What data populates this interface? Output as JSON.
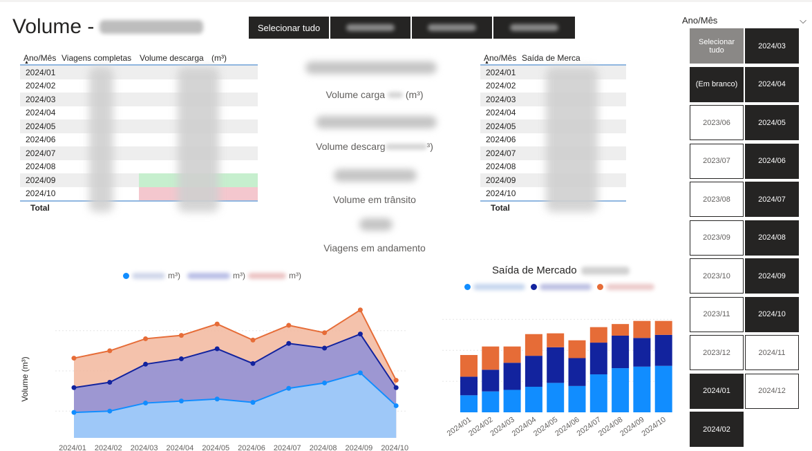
{
  "page": {
    "title": "Volume -"
  },
  "top_slicer": {
    "select_all_label": "Selecionar tudo"
  },
  "table_left": {
    "headers": [
      "Ano/Mês",
      "Viagens completas",
      "Volume descarga",
      "(m³)"
    ],
    "rows": [
      "2024/01",
      "2024/02",
      "2024/03",
      "2024/04",
      "2024/05",
      "2024/06",
      "2024/07",
      "2024/08",
      "2024/09",
      "2024/10"
    ],
    "total_label": "Total",
    "highlight_colors": {
      "green": "#c6efce",
      "red": "#f4c7ce"
    }
  },
  "center_kpis": {
    "volume_carga_label": "Volume carga",
    "volume_carga_unit": "(m³)",
    "volume_descarga_label": "Volume descarg",
    "volume_descarga_unit": "³)",
    "volume_transito_label": "Volume em trânsito",
    "viagens_andamento_label": "Viagens em andamento"
  },
  "table_right": {
    "headers": [
      "Ano/Mês",
      "Saída de Merca"
    ],
    "rows": [
      "2024/01",
      "2024/02",
      "2024/03",
      "2024/04",
      "2024/05",
      "2024/06",
      "2024/07",
      "2024/08",
      "2024/09",
      "2024/10"
    ],
    "total_label": "Total"
  },
  "area_chart_legend": {
    "unit_1": "m³)",
    "unit_2": "m³)",
    "unit_3": "m³)"
  },
  "bar_chart_header": {
    "title": "Saída de Mercado"
  },
  "colors": {
    "light_blue": "#118dff",
    "dark_blue": "#12239e",
    "orange": "#e66c37",
    "dark_tile": "#252423"
  },
  "slicer_right": {
    "header": "Ano/Mês",
    "chevron": "⌵",
    "tiles": [
      {
        "label": "Selecionar tudo",
        "state": "grey"
      },
      {
        "label": "2024/03",
        "state": "dark"
      },
      {
        "label": "(Em branco)",
        "state": "dark"
      },
      {
        "label": "2024/04",
        "state": "dark"
      },
      {
        "label": "2023/06",
        "state": "light"
      },
      {
        "label": "2024/05",
        "state": "dark"
      },
      {
        "label": "2023/07",
        "state": "light"
      },
      {
        "label": "2024/06",
        "state": "dark"
      },
      {
        "label": "2023/08",
        "state": "light"
      },
      {
        "label": "2024/07",
        "state": "dark"
      },
      {
        "label": "2023/09",
        "state": "light"
      },
      {
        "label": "2024/08",
        "state": "dark"
      },
      {
        "label": "2023/10",
        "state": "light"
      },
      {
        "label": "2024/09",
        "state": "dark"
      },
      {
        "label": "2023/11",
        "state": "light"
      },
      {
        "label": "2024/10",
        "state": "dark"
      },
      {
        "label": "2023/12",
        "state": "light"
      },
      {
        "label": "2024/11",
        "state": "light"
      },
      {
        "label": "2024/01",
        "state": "dark"
      },
      {
        "label": "2024/12",
        "state": "light"
      },
      {
        "label": "2024/02",
        "state": "dark"
      }
    ]
  },
  "chart_data": [
    {
      "type": "area",
      "ylabel": "Volume (m³)",
      "categories": [
        "2024/01",
        "2024/02",
        "2024/03",
        "2024/04",
        "2024/05",
        "2024/06",
        "2024/07",
        "2024/08",
        "2024/09",
        "2024/10"
      ],
      "series": [
        {
          "values": [
            38,
            40,
            52,
            55,
            58,
            53,
            74,
            82,
            97,
            48
          ],
          "color": "#118dff"
        },
        {
          "values": [
            75,
            83,
            110,
            118,
            133,
            111,
            141,
            134,
            155,
            75
          ],
          "color": "#12239e"
        },
        {
          "values": [
            119,
            130,
            148,
            153,
            170,
            146,
            168,
            157,
            191,
            86
          ],
          "color": "#e66c37"
        }
      ],
      "stacked": false,
      "ylim": [
        0,
        200
      ]
    },
    {
      "type": "bar",
      "categories": [
        "2024/01",
        "2024/02",
        "2024/03",
        "2024/04",
        "2024/05",
        "2024/06",
        "2024/07",
        "2024/08",
        "2024/09",
        "2024/10"
      ],
      "series": [
        {
          "values": [
            22,
            27,
            29,
            33,
            38,
            34,
            49,
            57,
            59,
            60
          ],
          "color": "#118dff"
        },
        {
          "values": [
            24,
            28,
            35,
            40,
            46,
            36,
            41,
            42,
            37,
            40
          ],
          "color": "#12239e"
        },
        {
          "values": [
            28,
            30,
            21,
            28,
            18,
            23,
            20,
            15,
            22,
            18
          ],
          "color": "#e66c37"
        }
      ],
      "stacked": true,
      "ylim": [
        0,
        140
      ]
    }
  ]
}
